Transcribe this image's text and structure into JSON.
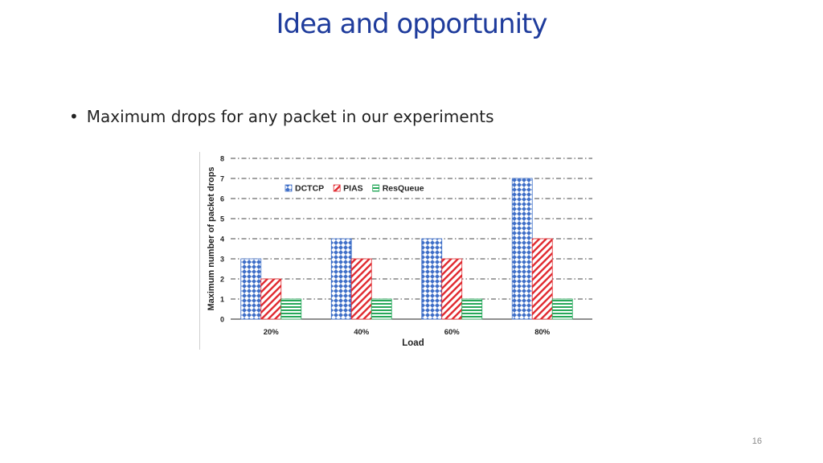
{
  "slide": {
    "title": "Idea and opportunity",
    "bullet": "Maximum drops for any packet in our experiments",
    "page_number": "16"
  },
  "chart_data": {
    "type": "bar",
    "categories": [
      "20%",
      "40%",
      "60%",
      "80%"
    ],
    "series": [
      {
        "name": "DCTCP",
        "values": [
          3,
          4,
          4,
          7
        ],
        "color": "#3f6fc8",
        "pattern": "diamond-check"
      },
      {
        "name": "PIAS",
        "values": [
          2,
          3,
          3,
          4
        ],
        "color": "#e0282e",
        "pattern": "diagonal-hatch"
      },
      {
        "name": "ResQueue",
        "values": [
          1,
          1,
          1,
          1
        ],
        "color": "#27a85a",
        "pattern": "horizontal-lines"
      }
    ],
    "xlabel": "Load",
    "ylabel": "Maximum number of packet drops",
    "ylim": [
      0,
      8
    ],
    "yticks": [
      0,
      1,
      2,
      3,
      4,
      5,
      6,
      7,
      8
    ],
    "grid": "dash-dot horizontal",
    "legend_position": "top-left"
  }
}
